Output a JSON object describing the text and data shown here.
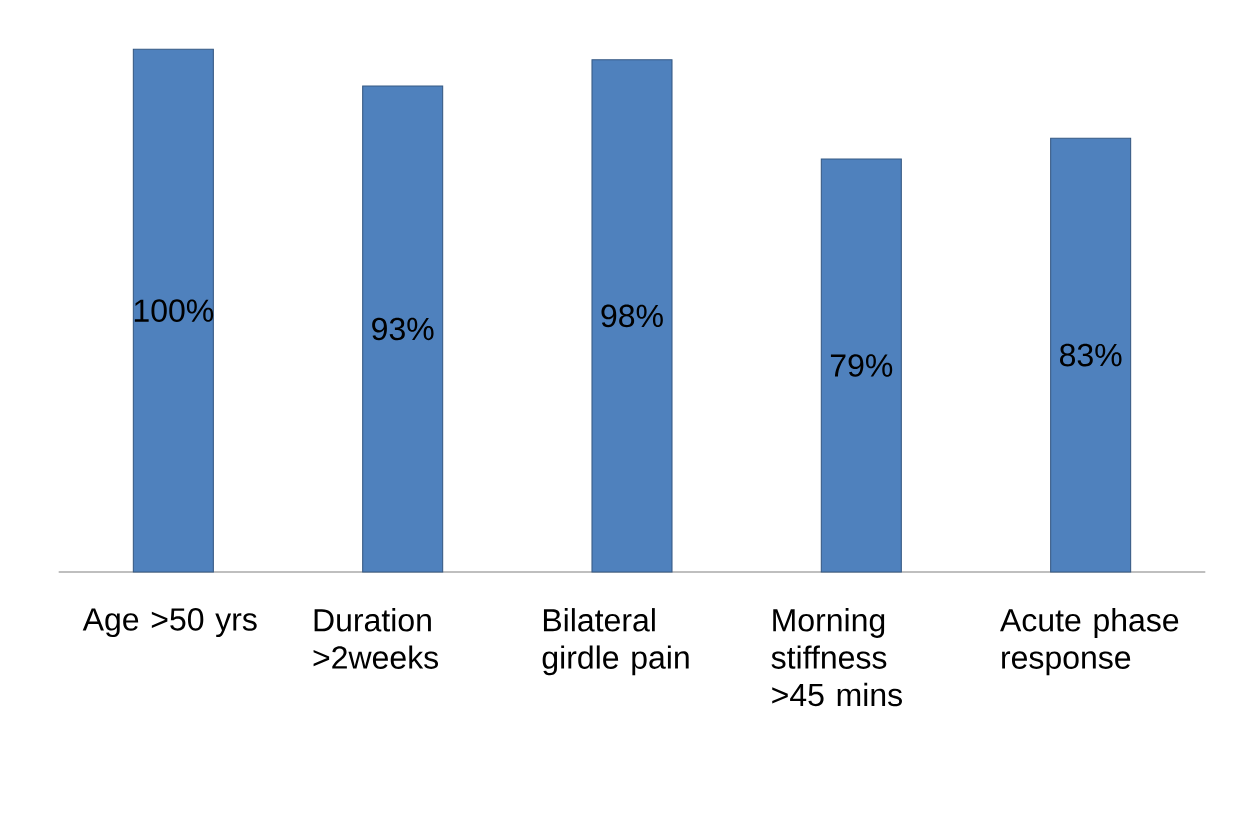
{
  "chart_data": {
    "type": "bar",
    "categories": [
      "Age >50 yrs",
      "Duration >2weeks",
      "Bilateral girdle pain",
      "Morning stiffness >45 mins",
      "Acute phase response"
    ],
    "values": [
      100,
      93,
      98,
      79,
      83
    ],
    "value_labels": [
      "100%",
      "93%",
      "98%",
      "79%",
      "83%"
    ],
    "color": "#4f81bd"
  }
}
